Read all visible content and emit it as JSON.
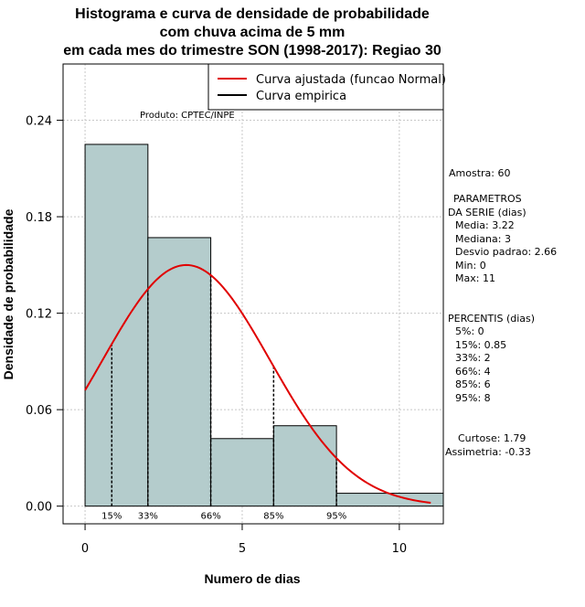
{
  "chart_data": {
    "type": "bar",
    "title_lines": [
      "Histograma e curva de densidade de probabilidade",
      "com chuva acima de 5 mm",
      "em cada mes do trimestre SON (1998-2017): Regiao 30"
    ],
    "xlabel": "Numero de dias",
    "ylabel": "Densidade de probabilidade",
    "xlim": [
      -0.7,
      11.4
    ],
    "ylim": [
      -0.011,
      0.275
    ],
    "x_ticks": [
      0,
      5,
      10
    ],
    "y_ticks": [
      0.0,
      0.06,
      0.12,
      0.18,
      0.24
    ],
    "y_tick_labels": [
      "0.00",
      "0.06",
      "0.12",
      "0.18",
      "0.24"
    ],
    "grid": true,
    "bar_color": "#b4cccc",
    "curve_color": "#e00000",
    "bins": [
      {
        "start": 0,
        "end": 2,
        "value": 0.225
      },
      {
        "start": 2,
        "end": 4,
        "value": 0.167
      },
      {
        "start": 4,
        "end": 6,
        "value": 0.042
      },
      {
        "start": 6,
        "end": 8,
        "value": 0.05
      },
      {
        "start": 8,
        "end": 11.5,
        "value": 0.008
      }
    ],
    "normal_curve": {
      "mean": 3.22,
      "sd": 2.66,
      "x_start": 0,
      "x_end": 11
    },
    "percentile_markers": [
      {
        "label": "15%",
        "x": 0.85
      },
      {
        "label": "33%",
        "x": 2
      },
      {
        "label": "66%",
        "x": 4
      },
      {
        "label": "85%",
        "x": 6
      },
      {
        "label": "95%",
        "x": 8
      }
    ],
    "legend": {
      "position": "top-right",
      "entries": [
        {
          "label": "Curva ajustada (funcao Normal)",
          "color": "#e00000"
        },
        {
          "label": "Curva empirica",
          "color": "#000000"
        }
      ]
    },
    "product_label": "Produto: CPTEC/INPE",
    "stats": {
      "sample": "Amostra: 60",
      "params_title_1": "PARAMETROS",
      "params_title_2": "DA SERIE (dias)",
      "media": "Media: 3.22",
      "mediana": "Mediana: 3",
      "desvio": "Desvio padrao: 2.66",
      "min": "Min: 0",
      "max": "Max: 11",
      "percentis_title": "PERCENTIS (dias)",
      "p5": "5%: 0",
      "p15": "15%: 0.85",
      "p33": "33%: 2",
      "p66": "66%: 4",
      "p85": "85%: 6",
      "p95": "95%: 8",
      "curtose": "Curtose: 1.79",
      "assimetria": "Assimetria: -0.33"
    }
  }
}
